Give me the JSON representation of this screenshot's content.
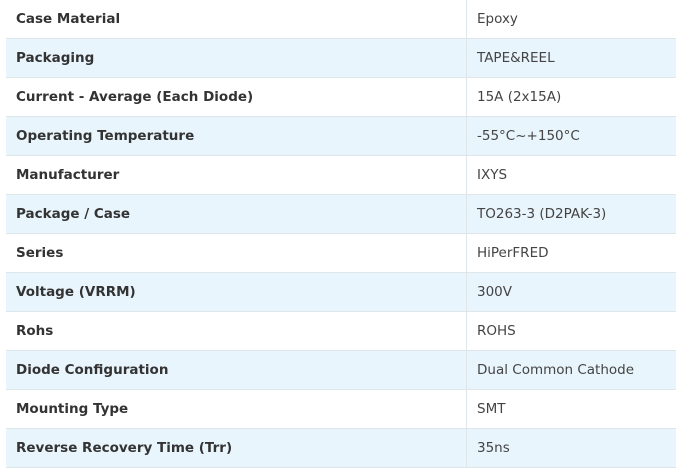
{
  "specs": [
    {
      "label": "Case Material",
      "value": "Epoxy"
    },
    {
      "label": "Packaging",
      "value": "TAPE&REEL"
    },
    {
      "label": "Current - Average (Each Diode)",
      "value": "15A (2x15A)"
    },
    {
      "label": "Operating Temperature",
      "value": "-55°C~+150°C"
    },
    {
      "label": "Manufacturer",
      "value": "IXYS"
    },
    {
      "label": "Package / Case",
      "value": "TO263-3 (D2PAK-3)"
    },
    {
      "label": "Series",
      "value": "HiPerFRED"
    },
    {
      "label": "Voltage (VRRM)",
      "value": "300V"
    },
    {
      "label": "Rohs",
      "value": "ROHS"
    },
    {
      "label": "Diode Configuration",
      "value": "Dual Common Cathode"
    },
    {
      "label": "Mounting Type",
      "value": "SMT"
    },
    {
      "label": "Reverse Recovery Time (Trr)",
      "value": "35ns"
    }
  ],
  "colors": {
    "row_alt": "#e9f5fd",
    "border": "#dfe6ea",
    "text": "#333333"
  }
}
